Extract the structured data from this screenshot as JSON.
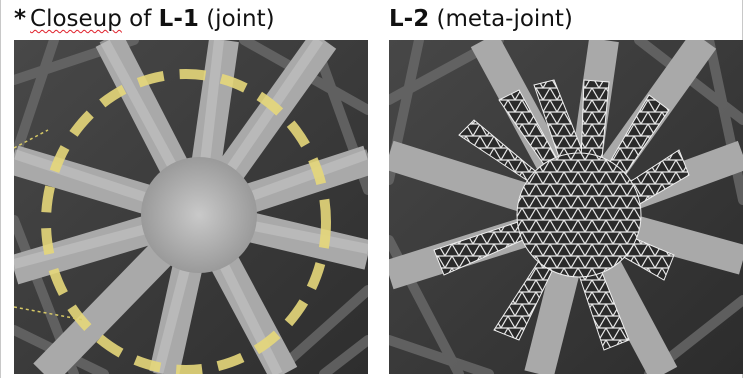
{
  "figure": {
    "left_panel": {
      "asterisk": "*",
      "caption_prefix_squiggle": "Closeup",
      "caption_prefix_rest": " of ",
      "caption_label": "L-1",
      "caption_suffix": " (joint)"
    },
    "right_panel": {
      "caption_label": "L-2",
      "caption_suffix": " (meta-joint)"
    }
  },
  "colors": {
    "background": "#3a3a3a",
    "strut": "#b4b4b4",
    "strut_dark": "#8c8c8c",
    "highlight_circle": "#e6d77a",
    "lattice_wire": "#e8e8e8"
  },
  "icons": [
    "joint-render-image",
    "meta-joint-render-image"
  ]
}
